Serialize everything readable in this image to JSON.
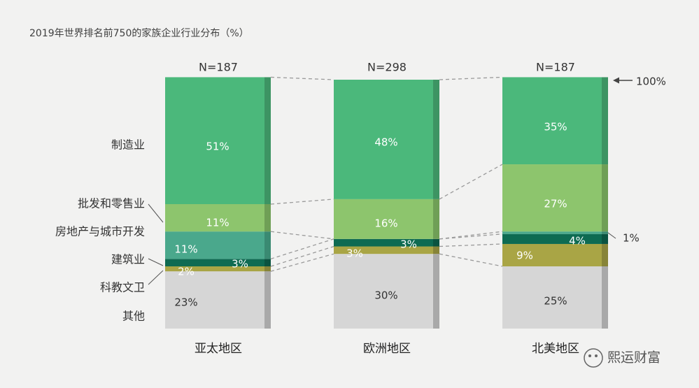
{
  "chart_data": {
    "type": "bar",
    "stacked": true,
    "title": "2019年世界排名前750的家族企业行业分布（%）",
    "categories": [
      "亚太地区",
      "欧洲地区",
      "北美地区"
    ],
    "sample_sizes": [
      "N=187",
      "N=298",
      "N=187"
    ],
    "ylim": [
      0,
      100
    ],
    "series": [
      {
        "name": "其他",
        "values": [
          23,
          30,
          25
        ],
        "labels": [
          "23%",
          "30%",
          "25%"
        ],
        "color": "#d6d6d6",
        "side": "#a9a9a9",
        "text": "#333333"
      },
      {
        "name": "科教文卫",
        "values": [
          2,
          3,
          9
        ],
        "labels": [
          "2%",
          "3%",
          "9%"
        ],
        "color": "#a9a545",
        "side": "#878438",
        "text": "#ffffff"
      },
      {
        "name": "建筑业",
        "values": [
          3,
          3,
          4
        ],
        "labels": [
          "3%",
          "3%",
          "4%"
        ],
        "color": "#0e6b52",
        "side": "#0a5340",
        "text": "#ffffff"
      },
      {
        "name": "房地产与城市开发",
        "values": [
          11,
          0,
          1
        ],
        "labels": [
          "11%",
          "",
          "1%"
        ],
        "color": "#4aa88c",
        "side": "#3a8a72",
        "text": "#ffffff"
      },
      {
        "name": "批发和零售业",
        "values": [
          11,
          16,
          27
        ],
        "labels": [
          "11%",
          "16%",
          "27%"
        ],
        "color": "#8dc56d",
        "side": "#6f9f56",
        "text": "#ffffff"
      },
      {
        "name": "制造业",
        "values": [
          51,
          48,
          35
        ],
        "labels": [
          "51%",
          "48%",
          "35%"
        ],
        "color": "#4bb87b",
        "side": "#3d9463",
        "text": "#ffffff"
      }
    ],
    "top_marker": "100%",
    "grid": false,
    "legend": "left"
  },
  "watermark": "熙运财富"
}
